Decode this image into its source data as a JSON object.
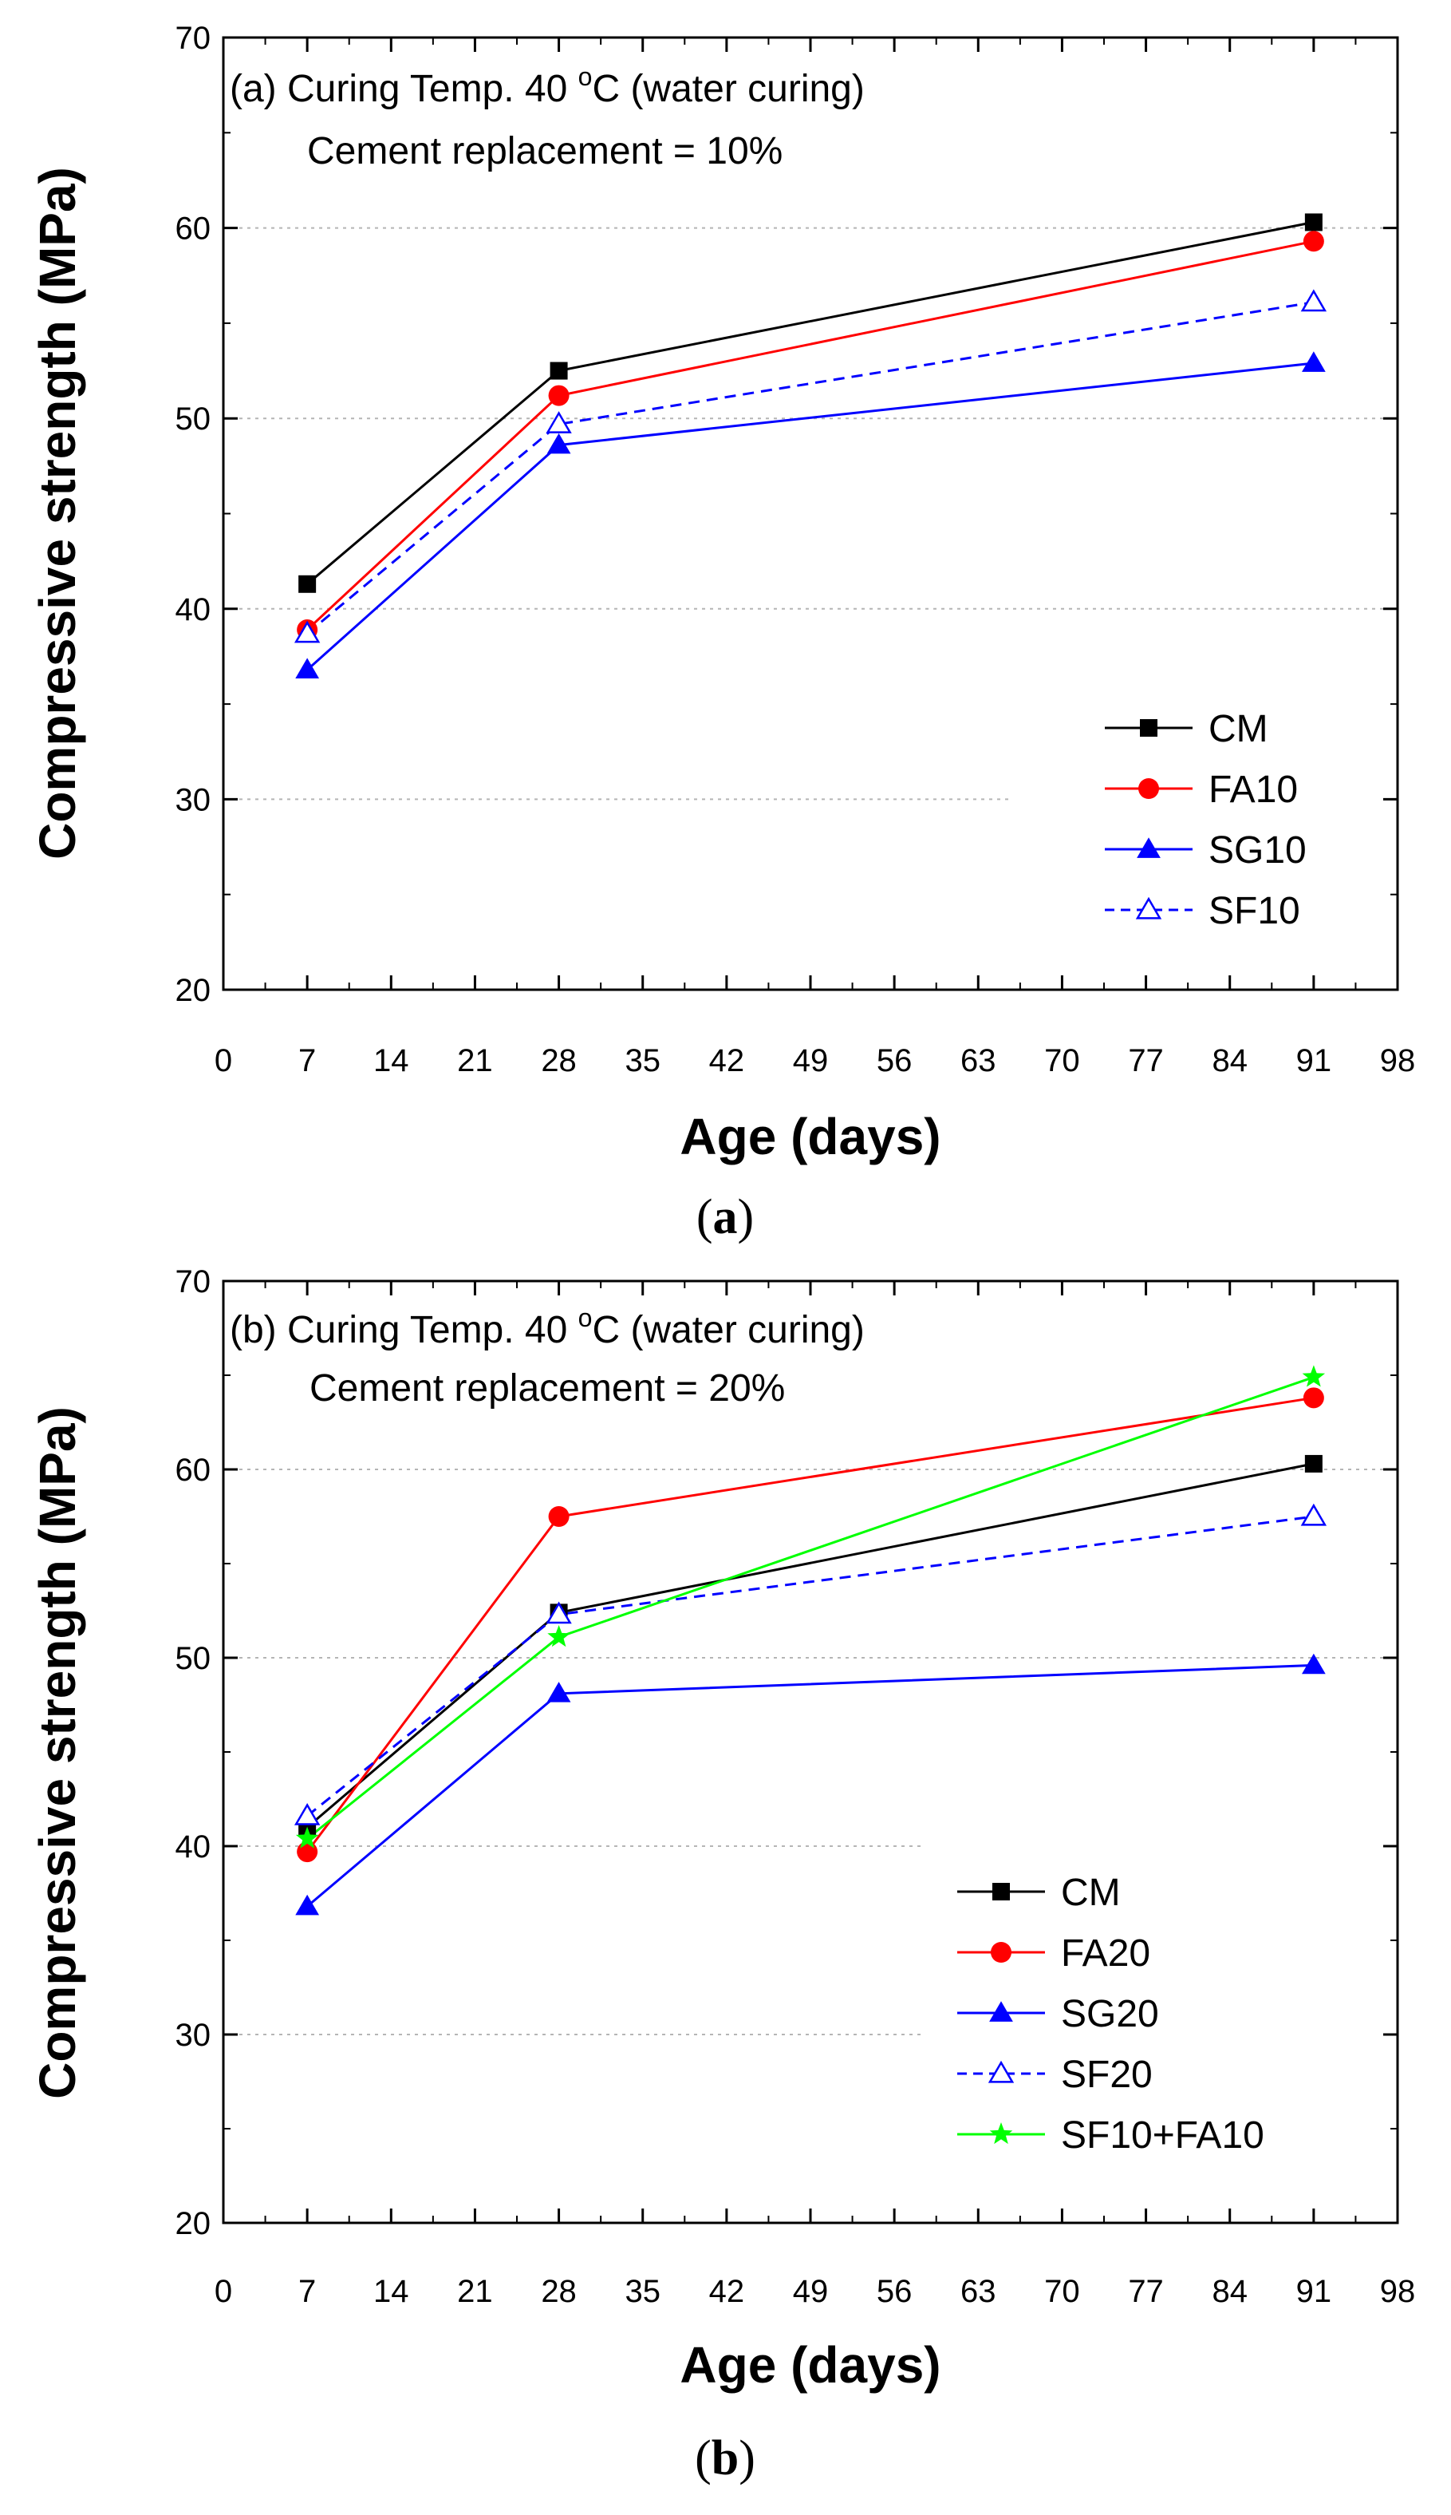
{
  "figure": {
    "captions": [
      {
        "open": "(",
        "letter": "a",
        "close": ")"
      },
      {
        "open": "(",
        "letter": "b",
        "close": ")"
      }
    ]
  },
  "chart_data": [
    {
      "type": "line",
      "id": "a",
      "title_line1": "(a) Curing Temp. 40 ",
      "title_degree": "o",
      "title_line1_rest": "C (water curing)",
      "title_line2": "Cement replacement = 10%",
      "xlabel": "Age (days)",
      "ylabel": "Compressive strength (MPa)",
      "xlim": [
        0,
        98
      ],
      "ylim": [
        20,
        70
      ],
      "xticks": [
        0,
        7,
        14,
        21,
        28,
        35,
        42,
        49,
        56,
        63,
        70,
        77,
        84,
        91,
        98
      ],
      "yticks": [
        20,
        30,
        40,
        50,
        60,
        70
      ],
      "grid": "horizontal dotted",
      "legend_position": "right",
      "x": [
        7,
        28,
        91
      ],
      "series": [
        {
          "name": "CM",
          "values": [
            41.3,
            52.5,
            60.3
          ],
          "color": "#000000",
          "marker": "square",
          "dash": false
        },
        {
          "name": "FA10",
          "values": [
            38.9,
            51.2,
            59.3
          ],
          "color": "#ff0000",
          "marker": "circle",
          "dash": false
        },
        {
          "name": "SG10",
          "values": [
            36.8,
            48.6,
            52.9
          ],
          "color": "#0000ff",
          "marker": "triangle",
          "dash": false
        },
        {
          "name": "SF10",
          "values": [
            38.7,
            49.7,
            56.1
          ],
          "color": "#0000ff",
          "marker": "triangle-open",
          "dash": true
        }
      ]
    },
    {
      "type": "line",
      "id": "b",
      "title_line1": "(b) Curing Temp. 40 ",
      "title_degree": "o",
      "title_line1_rest": "C (water curing)",
      "title_line2": "Cement replacement = 20%",
      "xlabel": "Age (days)",
      "ylabel": "Compressive strength (MPa)",
      "xlim": [
        0,
        98
      ],
      "ylim": [
        20,
        70
      ],
      "xticks": [
        0,
        7,
        14,
        21,
        28,
        35,
        42,
        49,
        56,
        63,
        70,
        77,
        84,
        91,
        98
      ],
      "yticks": [
        20,
        30,
        40,
        50,
        60,
        70
      ],
      "grid": "horizontal dotted",
      "legend_position": "bottom-right",
      "x": [
        7,
        28,
        91
      ],
      "series": [
        {
          "name": "CM",
          "values": [
            41.0,
            52.4,
            60.3
          ],
          "color": "#000000",
          "marker": "square",
          "dash": false
        },
        {
          "name": "FA20",
          "values": [
            39.7,
            57.5,
            63.8
          ],
          "color": "#ff0000",
          "marker": "circle",
          "dash": false
        },
        {
          "name": "SG20",
          "values": [
            36.8,
            48.1,
            49.6
          ],
          "color": "#0000ff",
          "marker": "triangle",
          "dash": false
        },
        {
          "name": "SF20",
          "values": [
            41.6,
            52.3,
            57.5
          ],
          "color": "#0000ff",
          "marker": "triangle-open",
          "dash": true
        },
        {
          "name": "SF10+FA10",
          "values": [
            40.4,
            51.1,
            64.9
          ],
          "color": "#00ff00",
          "marker": "star",
          "dash": false
        }
      ]
    }
  ]
}
